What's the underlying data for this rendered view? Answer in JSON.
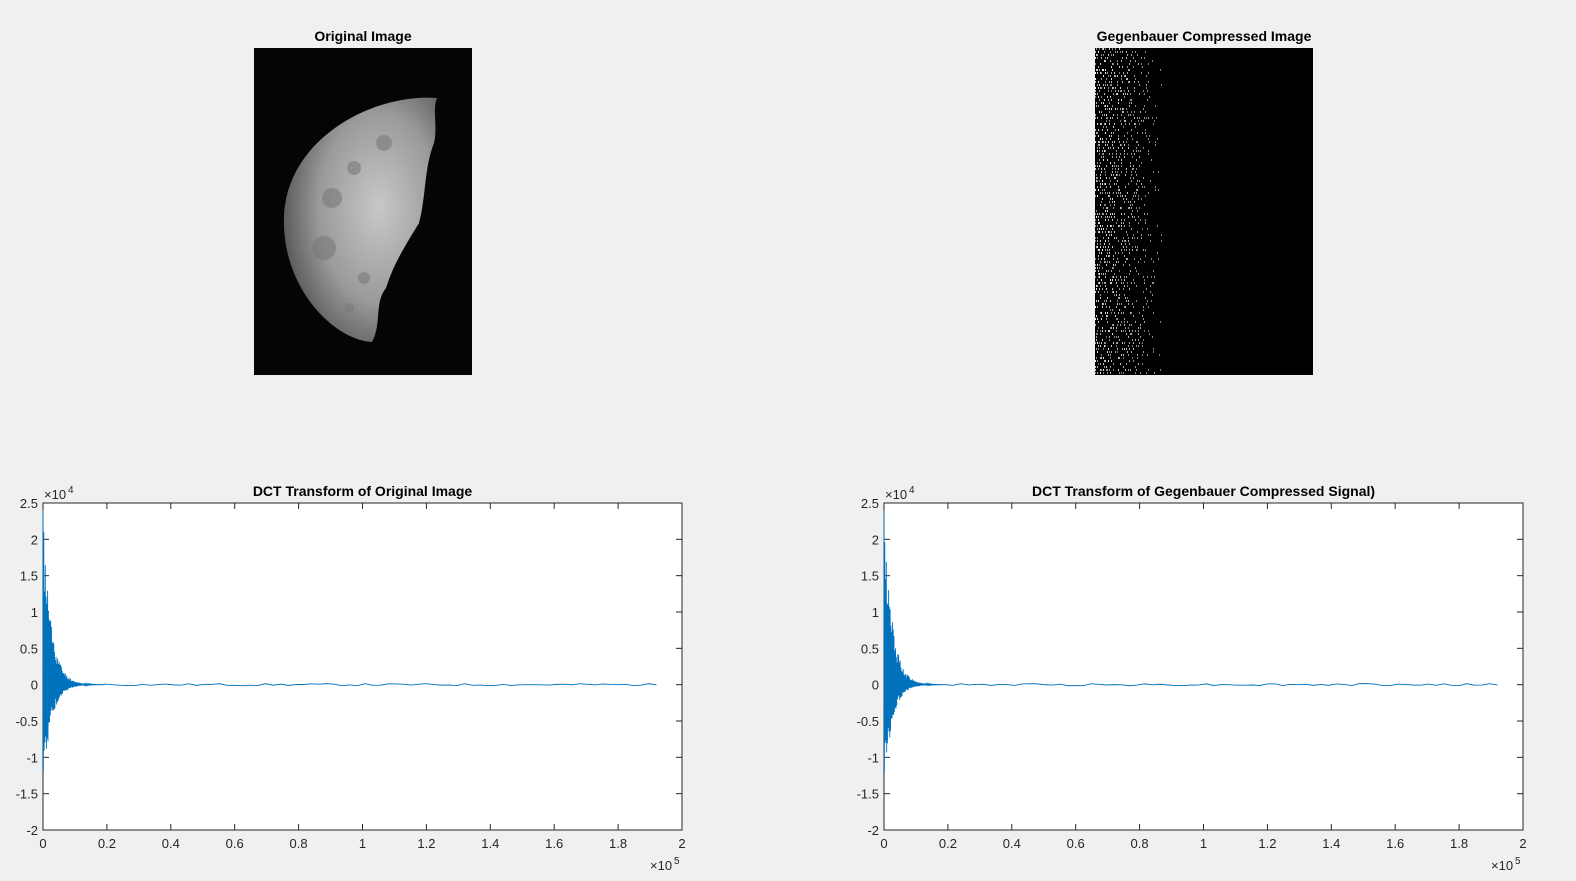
{
  "figure": {
    "panels": [
      {
        "title": "Original Image"
      },
      {
        "title": "Gegenbauer Compressed Image"
      }
    ]
  },
  "chart_data": [
    {
      "type": "line",
      "title": "DCT Transform of Original Image",
      "xlim": [
        0,
        200000
      ],
      "ylim": [
        -20000,
        25000
      ],
      "x_exponent": "×10",
      "x_exponent_power": "5",
      "y_exponent": "×10",
      "y_exponent_power": "4",
      "xticks": [
        0,
        20000,
        40000,
        60000,
        80000,
        100000,
        120000,
        140000,
        160000,
        180000,
        200000
      ],
      "xtick_labels": [
        "0",
        "0.2",
        "0.4",
        "0.6",
        "0.8",
        "1",
        "1.2",
        "1.4",
        "1.6",
        "1.8",
        "2"
      ],
      "yticks": [
        -20000,
        -15000,
        -10000,
        -5000,
        0,
        5000,
        10000,
        15000,
        20000,
        25000
      ],
      "ytick_labels": [
        "-2",
        "-1.5",
        "-1",
        "-0.5",
        "0",
        "0.5",
        "1",
        "1.5",
        "2",
        "2.5"
      ],
      "series_color": "#0072bd",
      "signal_length": 192000,
      "peak_max": 24000,
      "peak_min": -14500
    },
    {
      "type": "line",
      "title": "DCT Transform of Gegenbauer Compressed Signal)",
      "xlim": [
        0,
        200000
      ],
      "ylim": [
        -20000,
        25000
      ],
      "x_exponent": "×10",
      "x_exponent_power": "5",
      "y_exponent": "×10",
      "y_exponent_power": "4",
      "xticks": [
        0,
        20000,
        40000,
        60000,
        80000,
        100000,
        120000,
        140000,
        160000,
        180000,
        200000
      ],
      "xtick_labels": [
        "0",
        "0.2",
        "0.4",
        "0.6",
        "0.8",
        "1",
        "1.2",
        "1.4",
        "1.6",
        "1.8",
        "2"
      ],
      "yticks": [
        -20000,
        -15000,
        -10000,
        -5000,
        0,
        5000,
        10000,
        15000,
        20000,
        25000
      ],
      "ytick_labels": [
        "-2",
        "-1.5",
        "-1",
        "-0.5",
        "0",
        "0.5",
        "1",
        "1.5",
        "2",
        "2.5"
      ],
      "series_color": "#0072bd",
      "signal_length": 192000,
      "peak_max": 24000,
      "peak_min": -14500
    }
  ]
}
